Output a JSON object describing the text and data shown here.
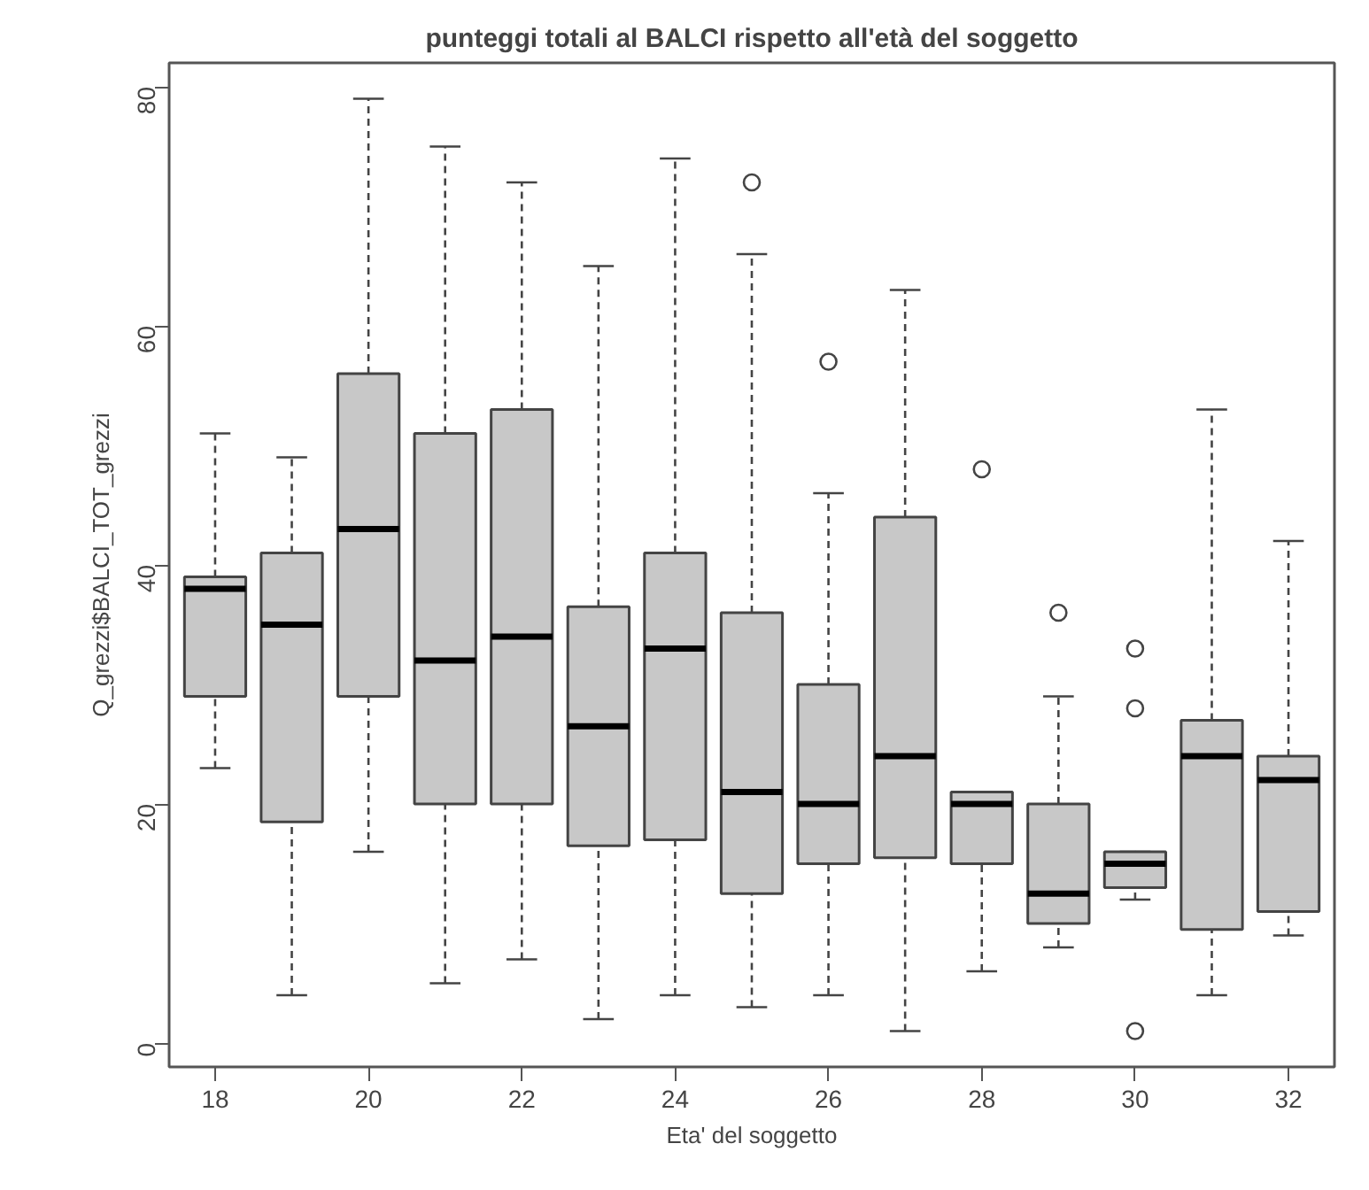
{
  "chart_data": {
    "type": "box",
    "title": "punteggi totali al BALCI rispetto all'età del soggetto",
    "xlabel": "Eta' del soggetto",
    "ylabel": "Q_grezzi$BALCI_TOT_grezzi",
    "categories": [
      "18",
      null,
      "20",
      null,
      "22",
      null,
      "24",
      null,
      "26",
      null,
      "28",
      null,
      "30",
      null,
      "32"
    ],
    "color": "#c8c8c8",
    "ylim": [
      -2,
      82
    ],
    "yticks": [
      0,
      20,
      40,
      60,
      80
    ],
    "grid": false,
    "boxes": [
      {
        "low": 23,
        "q1": 29,
        "median": 38,
        "q3": 39,
        "high": 51
      },
      {
        "low": 4,
        "q1": 18.5,
        "median": 35,
        "q3": 41,
        "high": 49
      },
      {
        "low": 16,
        "q1": 29,
        "median": 43,
        "q3": 56,
        "high": 79
      },
      {
        "low": 5,
        "q1": 20,
        "median": 32,
        "q3": 51,
        "high": 75
      },
      {
        "low": 7,
        "q1": 20,
        "median": 34,
        "q3": 53,
        "high": 72
      },
      {
        "low": 2,
        "q1": 16.5,
        "median": 26.5,
        "q3": 36.5,
        "high": 65
      },
      {
        "low": 4,
        "q1": 17,
        "median": 33,
        "q3": 41,
        "high": 74
      },
      {
        "low": 3,
        "q1": 12.5,
        "median": 21,
        "q3": 36,
        "high": 66,
        "outliers": [
          72
        ]
      },
      {
        "low": 4,
        "q1": 15,
        "median": 20,
        "q3": 30,
        "high": 46,
        "outliers": [
          57
        ]
      },
      {
        "low": 1,
        "q1": 15.5,
        "median": 24,
        "q3": 44,
        "high": 63
      },
      {
        "low": 6,
        "q1": 15,
        "median": 20,
        "q3": 21,
        "high": 21,
        "outliers": [
          48
        ]
      },
      {
        "low": 8,
        "q1": 10,
        "median": 12.5,
        "q3": 20,
        "high": 29,
        "outliers": [
          36
        ]
      },
      {
        "low": 12,
        "q1": 13,
        "median": 15,
        "q3": 16,
        "high": 16,
        "outliers": [
          33,
          28,
          1
        ]
      },
      {
        "low": 4,
        "q1": 9.5,
        "median": 24,
        "q3": 27,
        "high": 53
      },
      {
        "low": 9,
        "q1": 11,
        "median": 22,
        "q3": 24,
        "high": 42
      }
    ]
  }
}
